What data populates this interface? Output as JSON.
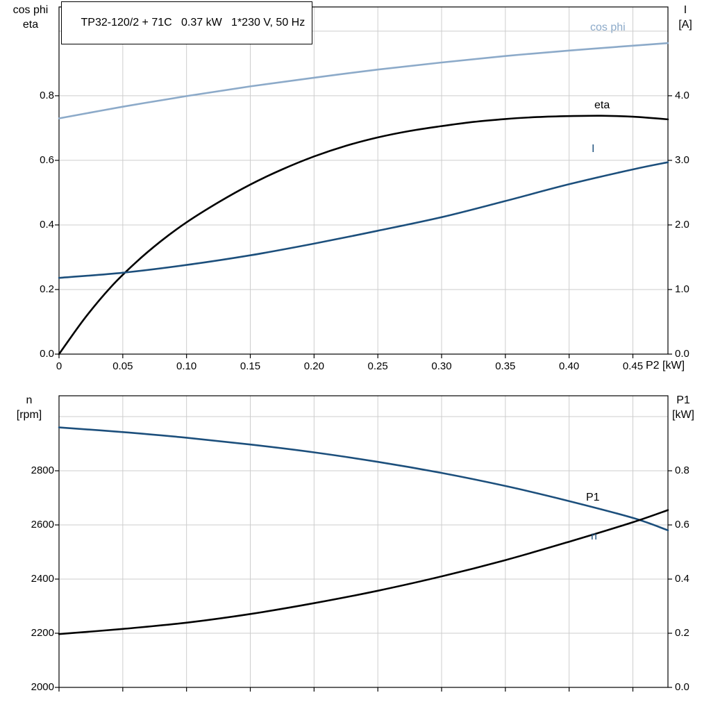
{
  "colors": {
    "light_blue": "#8caac9",
    "dark_blue": "#1c4f7c",
    "black": "#000000",
    "grid": "#cdcdcd",
    "frame": "#000000",
    "background": "#ffffff"
  },
  "chart_data": [
    {
      "type": "line",
      "title": "TP32-120/2 + 71C   0.37 kW   1*230 V, 50 Hz",
      "xlabel": "P2 [kW]",
      "left_axis_label": [
        "cos phi",
        "eta"
      ],
      "right_axis_label": [
        "I",
        "[A]"
      ],
      "xlim": [
        0,
        0.4775
      ],
      "ylim_left": [
        0,
        1.075
      ],
      "ylim_right": [
        0,
        5.375
      ],
      "grid": true,
      "legend_position": "labels-at-curve-ends",
      "x_ticks": [
        0,
        0.05,
        0.1,
        0.15,
        0.2,
        0.25,
        0.3,
        0.35,
        0.4,
        0.45
      ],
      "x_tick_labels": [
        "0",
        "0.05",
        "0.10",
        "0.15",
        "0.20",
        "0.25",
        "0.30",
        "0.35",
        "0.40",
        "0.45"
      ],
      "left_ticks": [
        0,
        0.2,
        0.4,
        0.6,
        0.8,
        1.0
      ],
      "left_tick_labels": [
        "0.0",
        "0.2",
        "0.4",
        "0.6",
        "0.8",
        ""
      ],
      "right_ticks": [
        0,
        1.0,
        2.0,
        3.0,
        4.0,
        5.0
      ],
      "right_tick_labels": [
        "0.0",
        "1.0",
        "2.0",
        "3.0",
        "4.0",
        ""
      ],
      "series": [
        {
          "name": "cos phi",
          "axis": "left",
          "color": "light_blue",
          "x": [
            0,
            0.05,
            0.1,
            0.15,
            0.2,
            0.25,
            0.3,
            0.35,
            0.4,
            0.45,
            0.4775
          ],
          "y": [
            0.73,
            0.766,
            0.799,
            0.829,
            0.856,
            0.881,
            0.903,
            0.923,
            0.94,
            0.955,
            0.963
          ]
        },
        {
          "name": "eta",
          "axis": "left",
          "color": "black",
          "x": [
            0,
            0.02,
            0.04,
            0.06,
            0.08,
            0.1,
            0.125,
            0.15,
            0.175,
            0.2,
            0.225,
            0.25,
            0.275,
            0.3,
            0.325,
            0.35,
            0.375,
            0.4,
            0.425,
            0.45,
            0.4775
          ],
          "y": [
            0.0,
            0.11,
            0.205,
            0.283,
            0.35,
            0.408,
            0.47,
            0.525,
            0.572,
            0.612,
            0.645,
            0.671,
            0.691,
            0.706,
            0.719,
            0.728,
            0.734,
            0.737,
            0.738,
            0.735,
            0.727
          ]
        },
        {
          "name": "I",
          "axis": "right",
          "color": "dark_blue",
          "x": [
            0,
            0.05,
            0.1,
            0.15,
            0.2,
            0.25,
            0.3,
            0.35,
            0.4,
            0.45,
            0.4775
          ],
          "y": [
            1.18,
            1.26,
            1.38,
            1.53,
            1.71,
            1.91,
            2.12,
            2.37,
            2.63,
            2.86,
            2.97
          ]
        }
      ]
    },
    {
      "type": "line",
      "title": "",
      "xlabel": "",
      "left_axis_label": [
        "n",
        "[rpm]"
      ],
      "right_axis_label": [
        "P1",
        "[kW]"
      ],
      "xlim": [
        0,
        0.4775
      ],
      "ylim_left": [
        2000,
        3077
      ],
      "ylim_right": [
        0,
        1.077
      ],
      "grid": true,
      "legend_position": "labels-at-curve-ends",
      "x_ticks": [
        0,
        0.05,
        0.1,
        0.15,
        0.2,
        0.25,
        0.3,
        0.35,
        0.4,
        0.45
      ],
      "x_tick_labels": [
        "",
        "",
        "",
        "",
        "",
        "",
        "",
        "",
        "",
        ""
      ],
      "left_ticks": [
        2000,
        2200,
        2400,
        2600,
        2800,
        3000
      ],
      "left_tick_labels": [
        "2000",
        "2200",
        "2400",
        "2600",
        "2800",
        ""
      ],
      "right_ticks": [
        0,
        0.2,
        0.4,
        0.6,
        0.8,
        1.0
      ],
      "right_tick_labels": [
        "0.0",
        "0.2",
        "0.4",
        "0.6",
        "0.8",
        ""
      ],
      "series": [
        {
          "name": "n",
          "axis": "left",
          "color": "dark_blue",
          "x": [
            0,
            0.05,
            0.1,
            0.15,
            0.2,
            0.25,
            0.3,
            0.35,
            0.4,
            0.45,
            0.4775
          ],
          "y": [
            2960,
            2943,
            2922,
            2897,
            2868,
            2833,
            2792,
            2744,
            2688,
            2626,
            2580
          ]
        },
        {
          "name": "P1",
          "axis": "right",
          "color": "black",
          "x": [
            0,
            0.05,
            0.1,
            0.15,
            0.2,
            0.25,
            0.3,
            0.35,
            0.4,
            0.45,
            0.4775
          ],
          "y": [
            0.197,
            0.216,
            0.239,
            0.271,
            0.311,
            0.357,
            0.41,
            0.47,
            0.538,
            0.61,
            0.655
          ]
        }
      ]
    }
  ]
}
